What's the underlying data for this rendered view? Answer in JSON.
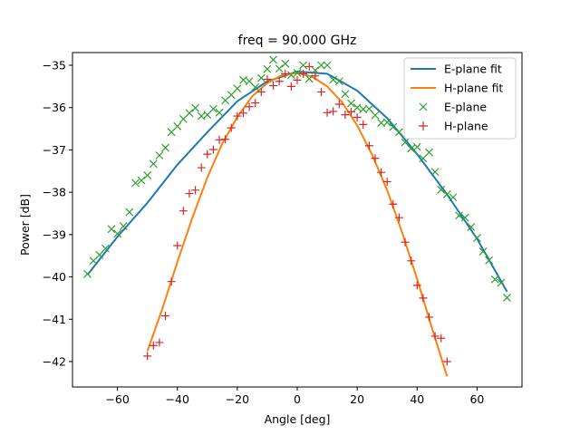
{
  "chart_data": {
    "type": "scatter",
    "title": "freq = 90.000 GHz",
    "xlabel": "Angle [deg]",
    "ylabel": "Power [dB]",
    "xlim": [
      -75,
      75
    ],
    "ylim": [
      -42.6,
      -34.7
    ],
    "xticks": [
      -60,
      -40,
      -20,
      0,
      20,
      40,
      60
    ],
    "xtick_labels": [
      "−60",
      "−40",
      "−20",
      "0",
      "20",
      "40",
      "60"
    ],
    "yticks": [
      -35,
      -36,
      -37,
      -38,
      -39,
      -40,
      -41,
      -42
    ],
    "ytick_labels": [
      "−35",
      "−36",
      "−37",
      "−38",
      "−39",
      "−40",
      "−41",
      "−42"
    ],
    "grid": false,
    "legend_position": "top-right",
    "colors": {
      "e_plane": "#1f77b4",
      "h_plane": "#ff7f0e",
      "e_points": "#2ca02c",
      "h_points": "#d62728"
    },
    "series": [
      {
        "name": "E-plane fit",
        "kind": "line",
        "color": "#1f77b4",
        "x": [
          -70,
          -60,
          -50,
          -40,
          -30,
          -20,
          -10,
          0,
          10,
          20,
          30,
          40,
          50,
          60,
          70
        ],
        "y": [
          -39.95,
          -39.05,
          -38.25,
          -37.35,
          -36.58,
          -35.85,
          -35.38,
          -35.15,
          -35.2,
          -35.6,
          -36.25,
          -37.1,
          -38.05,
          -39.1,
          -40.35
        ]
      },
      {
        "name": "H-plane fit",
        "kind": "line",
        "color": "#ff7f0e",
        "x": [
          -50,
          -45,
          -40,
          -35,
          -30,
          -25,
          -20,
          -15,
          -10,
          -5,
          0,
          5,
          10,
          15,
          20,
          25,
          30,
          35,
          40,
          45,
          50
        ],
        "y": [
          -41.75,
          -40.75,
          -39.65,
          -38.6,
          -37.65,
          -36.85,
          -36.22,
          -35.73,
          -35.42,
          -35.23,
          -35.18,
          -35.27,
          -35.5,
          -35.88,
          -36.42,
          -37.12,
          -37.95,
          -38.95,
          -40.05,
          -41.22,
          -42.35
        ]
      },
      {
        "name": "E-plane",
        "kind": "scatter",
        "marker": "x",
        "color": "#2ca02c",
        "x": [
          -70,
          -68,
          -66,
          -64,
          -62,
          -60,
          -58,
          -56,
          -54,
          -52,
          -50,
          -48,
          -46,
          -44,
          -42,
          -40,
          -38,
          -36,
          -34,
          -32,
          -30,
          -28,
          -26,
          -24,
          -22,
          -20,
          -18,
          -16,
          -14,
          -12,
          -10,
          -8,
          -6,
          -4,
          -2,
          0,
          2,
          4,
          6,
          8,
          10,
          12,
          14,
          16,
          18,
          20,
          22,
          24,
          26,
          28,
          30,
          32,
          34,
          36,
          38,
          40,
          42,
          44,
          46,
          48,
          50,
          52,
          54,
          56,
          58,
          60,
          62,
          64,
          66,
          68,
          70
        ],
        "y": [
          -39.93,
          -39.62,
          -39.48,
          -39.33,
          -38.87,
          -38.98,
          -38.8,
          -38.47,
          -37.78,
          -37.72,
          -37.6,
          -37.33,
          -37.13,
          -36.95,
          -36.58,
          -36.44,
          -36.27,
          -36.13,
          -36.01,
          -36.2,
          -36.17,
          -36.03,
          -36.12,
          -35.83,
          -35.7,
          -35.55,
          -35.35,
          -35.38,
          -35.52,
          -35.3,
          -35.09,
          -34.87,
          -35.08,
          -34.96,
          -35.23,
          -35.18,
          -35.0,
          -35.32,
          -35.12,
          -35.0,
          -35.0,
          -35.34,
          -35.38,
          -35.68,
          -35.9,
          -36.0,
          -36.04,
          -36.03,
          -36.18,
          -36.36,
          -36.35,
          -36.46,
          -36.58,
          -36.82,
          -36.97,
          -36.93,
          -37.2,
          -37.06,
          -37.52,
          -37.94,
          -38.05,
          -38.12,
          -38.55,
          -38.6,
          -38.82,
          -39.08,
          -39.4,
          -39.61,
          -40.06,
          -40.14,
          -40.49
        ]
      },
      {
        "name": "H-plane",
        "kind": "scatter",
        "marker": "+",
        "color": "#d62728",
        "x": [
          -50,
          -48,
          -46,
          -44,
          -42,
          -40,
          -38,
          -36,
          -34,
          -32,
          -30,
          -28,
          -26,
          -24,
          -22,
          -20,
          -18,
          -16,
          -14,
          -12,
          -10,
          -8,
          -6,
          -4,
          -2,
          0,
          2,
          4,
          6,
          8,
          10,
          12,
          14,
          16,
          18,
          20,
          22,
          24,
          26,
          28,
          30,
          32,
          34,
          36,
          38,
          40,
          42,
          44,
          46,
          48,
          50
        ],
        "y": [
          -41.87,
          -41.62,
          -41.55,
          -40.92,
          -40.11,
          -39.26,
          -38.44,
          -38.03,
          -37.95,
          -37.42,
          -37.1,
          -36.99,
          -36.76,
          -36.75,
          -36.48,
          -36.2,
          -36.13,
          -35.98,
          -35.89,
          -35.63,
          -35.33,
          -35.48,
          -35.38,
          -35.2,
          -35.5,
          -35.35,
          -35.2,
          -35.03,
          -35.25,
          -35.63,
          -36.12,
          -36.09,
          -35.92,
          -36.17,
          -36.1,
          -36.23,
          -36.4,
          -36.9,
          -37.2,
          -37.53,
          -37.75,
          -38.28,
          -38.6,
          -39.18,
          -39.62,
          -40.2,
          -40.5,
          -40.95,
          -41.4,
          -41.45,
          -42.0
        ]
      }
    ]
  }
}
